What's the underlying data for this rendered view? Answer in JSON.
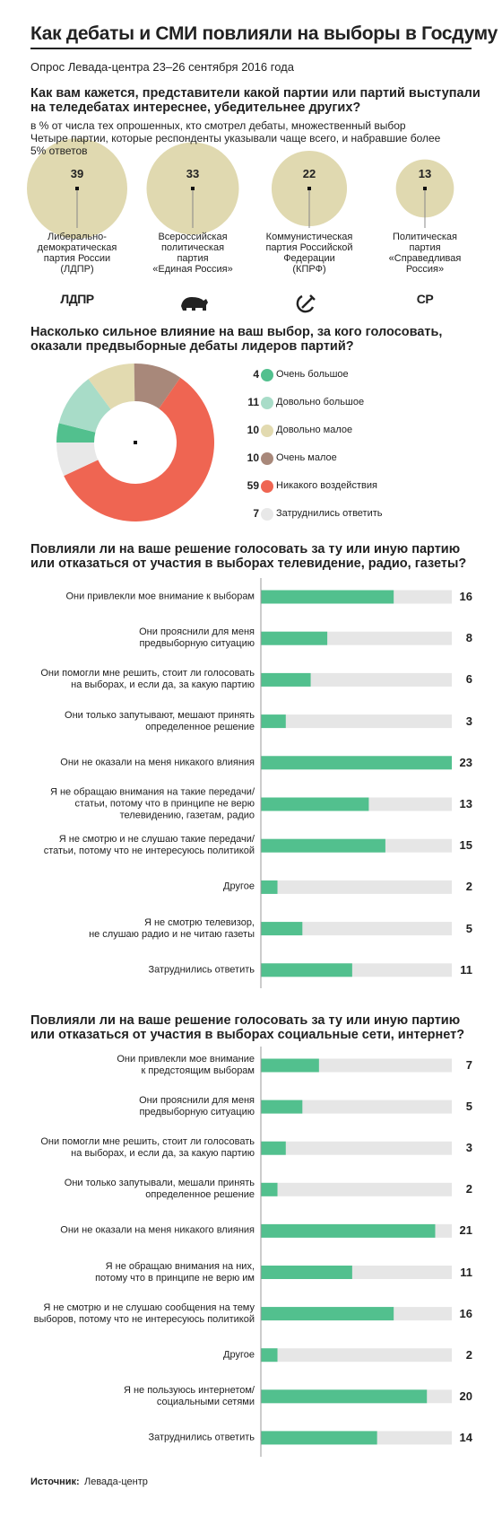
{
  "header": {
    "title": "Как дебаты и СМИ повлияли на выборы в Госдуму",
    "subtitle": "Опрос Левада-центра 23–26 сентября 2016 года"
  },
  "chart_data": [
    {
      "type": "bubble",
      "title": "Как вам кажется, представители какой партии или партий выступали\nна теледебатах интереснее, убедительнее других?",
      "subtitle": "в % от числа тех опрошенных, кто смотрел дебаты, множественный выбор",
      "note": "Четыре партии, которые респонденты указывали чаще всего, и набравшие более\n5% ответов",
      "categories": [
        "Либерально-\nдемократическая\nпартия России\n(ЛДПР)",
        "Всероссийская\nполитическая\nпартия\n«Единая Россия»",
        "Коммунистическая\nпартия Российской\nФедерации\n(КПРФ)",
        "Политическая\nпартия\n«Справедливая\nРоссия»"
      ],
      "logos": [
        "ЛДПР",
        null,
        null,
        "СР"
      ],
      "values": [
        39,
        33,
        22,
        13
      ],
      "color": "#e0d9b0"
    },
    {
      "type": "pie",
      "donut": true,
      "title": "Насколько сильное влияние на ваш выбор, за кого голосовать,\nоказали предвыборные дебаты лидеров партий?",
      "categories": [
        "Очень большое",
        "Довольно большое",
        "Довольно малое",
        "Очень малое",
        "Никакого воздействия",
        "Затруднились ответить"
      ],
      "values": [
        4,
        11,
        10,
        10,
        59,
        7
      ],
      "colors": [
        "#52c08e",
        "#a8dcc8",
        "#e2dab0",
        "#a8887a",
        "#ef6552",
        "#e8e8e8"
      ]
    },
    {
      "type": "hbar",
      "title": "Повлияли ли на ваше решение голосовать за ту или иную партию\nили отказаться от участия в выборах телевидение, радио, газеты?",
      "categories": [
        "Они привлекли мое внимание к выборам",
        "Они прояснили для меня\nпредвыборную ситуацию",
        "Они помогли мне решить, стоит ли голосовать\nна выборах, и если да, за какую партию",
        "Они только запутывают, мешают принять\nопределенное решение",
        "Они не оказали на меня никакого влияния",
        "Я не обращаю внимания на такие передачи/\nстатьи, потому что в принципе не верю\nтелевидению, газетам, радио",
        "Я не смотрю и не слушаю такие передачи/\nстатьи, потому что не интересуюсь политикой",
        "Другое",
        "Я не смотрю телевизор,\nне слушаю радио и не читаю газеты",
        "Затруднились ответить"
      ],
      "values": [
        16,
        8,
        6,
        3,
        23,
        13,
        15,
        2,
        5,
        11
      ],
      "xlim": [
        0,
        23
      ],
      "color": "#52c08e",
      "track_color": "#e6e6e6"
    },
    {
      "type": "hbar",
      "title": "Повлияли ли на ваше решение голосовать за ту или иную партию\nили отказаться от участия в выборах социальные сети, интернет?",
      "categories": [
        "Они привлекли мое внимание\nк предстоящим выборам",
        "Они прояснили для меня\nпредвыборную ситуацию",
        "Они помогли мне решить, стоит ли голосовать\nна выборах, и если да, за какую партию",
        "Они только запутывали, мешали принять\nопределенное решение",
        "Они не оказали на меня никакого влияния",
        "Я не обращаю внимания на них,\nпотому что в принципе не верю им",
        "Я не смотрю и не слушаю сообщения на тему\nвыборов, потому что не интересуюсь политикой",
        "Другое",
        "Я не пользуюсь интернетом/\nсоциальными сетями",
        "Затруднились ответить"
      ],
      "values": [
        7,
        5,
        3,
        2,
        21,
        11,
        16,
        2,
        20,
        14
      ],
      "xlim": [
        0,
        23
      ],
      "color": "#52c08e",
      "track_color": "#e6e6e6"
    }
  ],
  "footer": {
    "source_label": "Источник:",
    "source": "Левада-центр"
  }
}
